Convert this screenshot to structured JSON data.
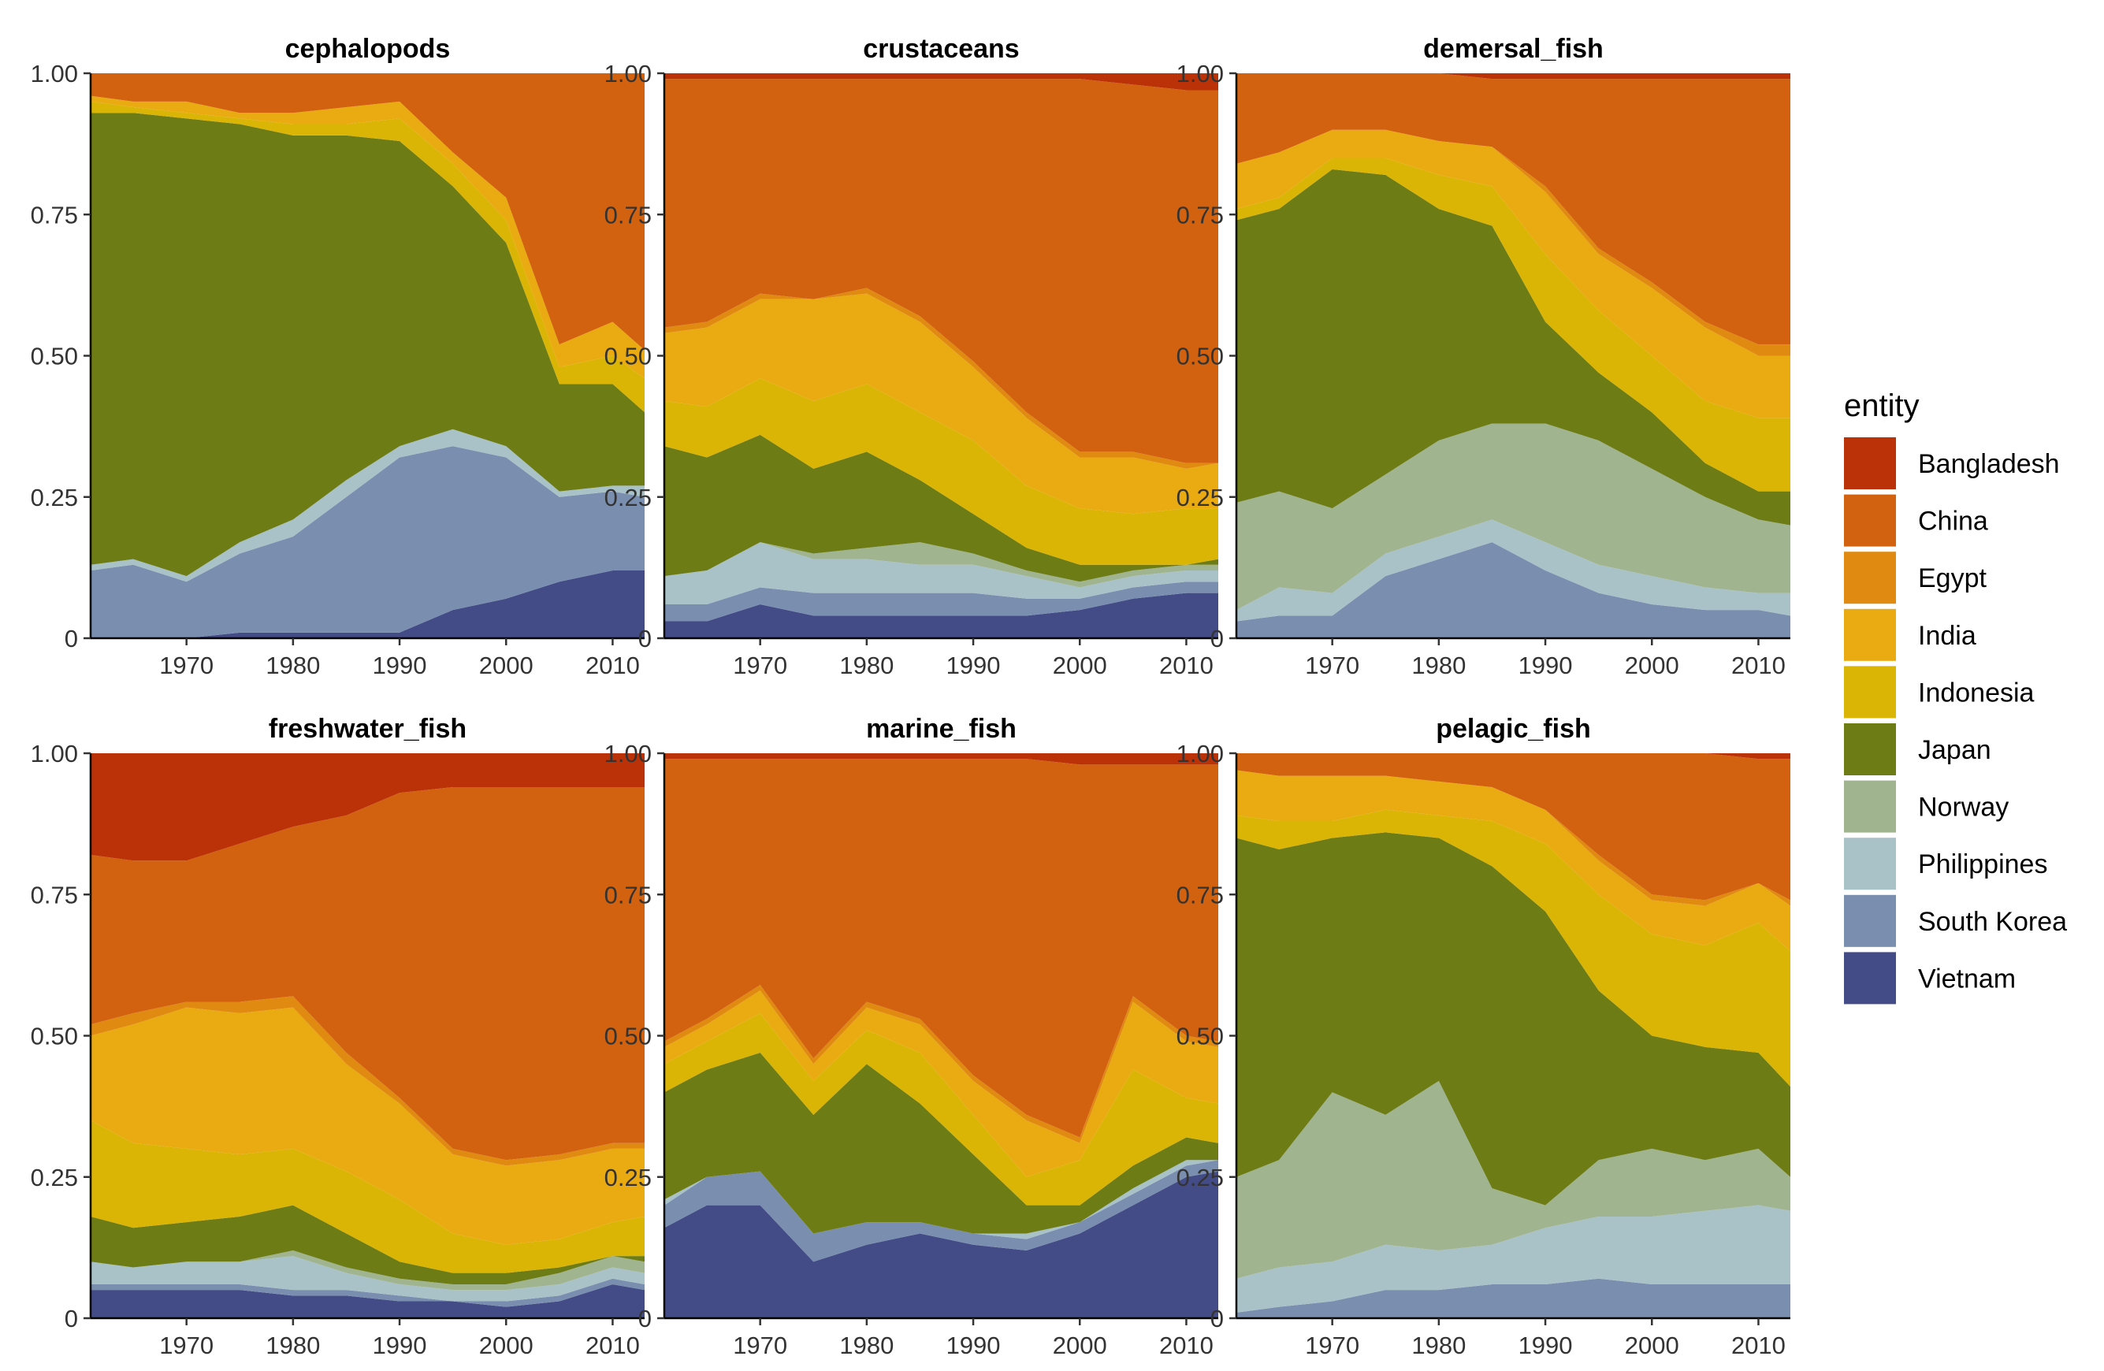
{
  "chart_data": {
    "type": "area",
    "stacking": "proportional",
    "x_ticks": [
      1970,
      1980,
      1990,
      2000,
      2010
    ],
    "y_ticks": [
      "0",
      "0.25",
      "0.50",
      "0.75",
      "1.00"
    ],
    "xlim": [
      1961,
      2013
    ],
    "ylim": [
      0,
      1
    ],
    "legend": {
      "title": "entity",
      "position": "right",
      "entries": [
        "Bangladesh",
        "China",
        "Egypt",
        "India",
        "Indonesia",
        "Japan",
        "Norway",
        "Philippines",
        "South Korea",
        "Vietnam"
      ]
    },
    "colors": {
      "Bangladesh": "#BB3208",
      "China": "#D2620F",
      "Egypt": "#E08A12",
      "India": "#EAAA12",
      "Indonesia": "#DAB505",
      "Japan": "#6D7C15",
      "Norway": "#A0B490",
      "Philippines": "#A9C2C8",
      "South Korea": "#7A8FB0",
      "Vietnam": "#444C87"
    },
    "panels": [
      {
        "title": "cephalopods",
        "years": [
          1961,
          1965,
          1970,
          1975,
          1980,
          1985,
          1990,
          1995,
          2000,
          2005,
          2010,
          2013
        ],
        "boundaries": {
          "Vietnam": [
            0.0,
            0.0,
            0.0,
            0.01,
            0.01,
            0.01,
            0.01,
            0.05,
            0.07,
            0.1,
            0.12,
            0.12
          ],
          "South Korea": [
            0.12,
            0.13,
            0.1,
            0.15,
            0.18,
            0.25,
            0.32,
            0.34,
            0.32,
            0.25,
            0.26,
            0.25
          ],
          "Philippines": [
            0.13,
            0.14,
            0.11,
            0.17,
            0.21,
            0.28,
            0.34,
            0.37,
            0.34,
            0.26,
            0.27,
            0.27
          ],
          "Norway": [
            0.13,
            0.14,
            0.11,
            0.17,
            0.21,
            0.28,
            0.34,
            0.37,
            0.34,
            0.26,
            0.27,
            0.27
          ],
          "Japan": [
            0.93,
            0.93,
            0.92,
            0.91,
            0.89,
            0.89,
            0.88,
            0.8,
            0.7,
            0.45,
            0.45,
            0.4
          ],
          "Indonesia": [
            0.95,
            0.94,
            0.93,
            0.92,
            0.91,
            0.91,
            0.92,
            0.84,
            0.74,
            0.48,
            0.5,
            0.46
          ],
          "India": [
            0.96,
            0.95,
            0.95,
            0.93,
            0.93,
            0.94,
            0.95,
            0.86,
            0.78,
            0.52,
            0.56,
            0.51
          ],
          "Egypt": [
            0.96,
            0.95,
            0.95,
            0.93,
            0.93,
            0.94,
            0.95,
            0.86,
            0.78,
            0.52,
            0.56,
            0.51
          ],
          "China": [
            1.0,
            1.0,
            1.0,
            1.0,
            1.0,
            1.0,
            1.0,
            1.0,
            1.0,
            1.0,
            1.0,
            1.0
          ]
        }
      },
      {
        "title": "crustaceans",
        "years": [
          1961,
          1965,
          1970,
          1975,
          1980,
          1985,
          1990,
          1995,
          2000,
          2005,
          2010,
          2013
        ],
        "boundaries": {
          "Vietnam": [
            0.03,
            0.03,
            0.06,
            0.04,
            0.04,
            0.04,
            0.04,
            0.04,
            0.05,
            0.07,
            0.08,
            0.08
          ],
          "South Korea": [
            0.06,
            0.06,
            0.09,
            0.08,
            0.08,
            0.08,
            0.08,
            0.07,
            0.07,
            0.09,
            0.1,
            0.1
          ],
          "Philippines": [
            0.11,
            0.12,
            0.17,
            0.14,
            0.14,
            0.13,
            0.13,
            0.11,
            0.09,
            0.11,
            0.12,
            0.12
          ],
          "Norway": [
            0.11,
            0.12,
            0.17,
            0.15,
            0.16,
            0.17,
            0.15,
            0.12,
            0.1,
            0.12,
            0.13,
            0.13
          ],
          "Japan": [
            0.34,
            0.32,
            0.36,
            0.3,
            0.33,
            0.28,
            0.22,
            0.16,
            0.13,
            0.13,
            0.13,
            0.14
          ],
          "Indonesia": [
            0.42,
            0.41,
            0.46,
            0.42,
            0.45,
            0.4,
            0.35,
            0.27,
            0.23,
            0.22,
            0.23,
            0.23
          ],
          "India": [
            0.54,
            0.55,
            0.6,
            0.6,
            0.61,
            0.56,
            0.48,
            0.39,
            0.32,
            0.32,
            0.3,
            0.31
          ],
          "Egypt": [
            0.55,
            0.56,
            0.61,
            0.6,
            0.62,
            0.57,
            0.49,
            0.4,
            0.33,
            0.33,
            0.31,
            0.31
          ],
          "China": [
            0.99,
            0.99,
            0.99,
            0.99,
            0.99,
            0.99,
            0.99,
            0.99,
            0.99,
            0.98,
            0.97,
            0.97
          ]
        }
      },
      {
        "title": "demersal_fish",
        "years": [
          1961,
          1965,
          1970,
          1975,
          1980,
          1985,
          1990,
          1995,
          2000,
          2005,
          2010,
          2013
        ],
        "boundaries": {
          "Vietnam": [
            0.0,
            0.0,
            0.0,
            0.0,
            0.0,
            0.0,
            0.0,
            0.0,
            0.0,
            0.0,
            0.0,
            0.0
          ],
          "South Korea": [
            0.03,
            0.04,
            0.04,
            0.11,
            0.14,
            0.17,
            0.12,
            0.08,
            0.06,
            0.05,
            0.05,
            0.04
          ],
          "Philippines": [
            0.05,
            0.09,
            0.08,
            0.15,
            0.18,
            0.21,
            0.17,
            0.13,
            0.11,
            0.09,
            0.08,
            0.08
          ],
          "Norway": [
            0.24,
            0.26,
            0.23,
            0.29,
            0.35,
            0.38,
            0.38,
            0.35,
            0.3,
            0.25,
            0.21,
            0.2
          ],
          "Japan": [
            0.74,
            0.76,
            0.83,
            0.82,
            0.76,
            0.73,
            0.56,
            0.47,
            0.4,
            0.31,
            0.26,
            0.26
          ],
          "Indonesia": [
            0.76,
            0.78,
            0.85,
            0.85,
            0.82,
            0.8,
            0.68,
            0.58,
            0.5,
            0.42,
            0.39,
            0.39
          ],
          "India": [
            0.84,
            0.86,
            0.9,
            0.9,
            0.88,
            0.87,
            0.79,
            0.68,
            0.62,
            0.55,
            0.5,
            0.5
          ],
          "Egypt": [
            0.84,
            0.86,
            0.9,
            0.9,
            0.88,
            0.87,
            0.8,
            0.69,
            0.63,
            0.56,
            0.52,
            0.52
          ],
          "China": [
            1.0,
            1.0,
            1.0,
            1.0,
            1.0,
            0.99,
            0.99,
            0.99,
            0.99,
            0.99,
            0.99,
            0.99
          ]
        }
      },
      {
        "title": "freshwater_fish",
        "years": [
          1961,
          1965,
          1970,
          1975,
          1980,
          1985,
          1990,
          1995,
          2000,
          2005,
          2010,
          2013
        ],
        "boundaries": {
          "Vietnam": [
            0.05,
            0.05,
            0.05,
            0.05,
            0.04,
            0.04,
            0.03,
            0.03,
            0.02,
            0.03,
            0.06,
            0.05
          ],
          "South Korea": [
            0.06,
            0.06,
            0.06,
            0.06,
            0.05,
            0.05,
            0.04,
            0.03,
            0.03,
            0.04,
            0.07,
            0.06
          ],
          "Philippines": [
            0.1,
            0.09,
            0.1,
            0.1,
            0.11,
            0.08,
            0.06,
            0.05,
            0.05,
            0.06,
            0.09,
            0.08
          ],
          "Norway": [
            0.1,
            0.09,
            0.1,
            0.1,
            0.12,
            0.09,
            0.07,
            0.06,
            0.06,
            0.08,
            0.11,
            0.1
          ],
          "Japan": [
            0.18,
            0.16,
            0.17,
            0.18,
            0.2,
            0.15,
            0.1,
            0.08,
            0.08,
            0.09,
            0.11,
            0.11
          ],
          "Indonesia": [
            0.35,
            0.31,
            0.3,
            0.29,
            0.3,
            0.26,
            0.21,
            0.15,
            0.13,
            0.14,
            0.17,
            0.18
          ],
          "India": [
            0.5,
            0.52,
            0.55,
            0.54,
            0.55,
            0.45,
            0.38,
            0.29,
            0.27,
            0.28,
            0.3,
            0.3
          ],
          "Egypt": [
            0.52,
            0.54,
            0.56,
            0.56,
            0.57,
            0.47,
            0.39,
            0.3,
            0.28,
            0.29,
            0.31,
            0.31
          ],
          "China": [
            0.82,
            0.81,
            0.81,
            0.84,
            0.87,
            0.89,
            0.93,
            0.94,
            0.94,
            0.94,
            0.94,
            0.94
          ]
        }
      },
      {
        "title": "marine_fish",
        "years": [
          1961,
          1965,
          1970,
          1975,
          1980,
          1985,
          1990,
          1995,
          2000,
          2005,
          2010,
          2013
        ],
        "boundaries": {
          "Vietnam": [
            0.16,
            0.2,
            0.2,
            0.1,
            0.13,
            0.15,
            0.13,
            0.12,
            0.15,
            0.2,
            0.25,
            0.26
          ],
          "South Korea": [
            0.2,
            0.25,
            0.26,
            0.15,
            0.17,
            0.17,
            0.15,
            0.14,
            0.17,
            0.22,
            0.27,
            0.28
          ],
          "Philippines": [
            0.21,
            0.25,
            0.26,
            0.15,
            0.17,
            0.17,
            0.15,
            0.15,
            0.17,
            0.23,
            0.28,
            0.28
          ],
          "Norway": [
            0.21,
            0.25,
            0.26,
            0.15,
            0.17,
            0.17,
            0.15,
            0.15,
            0.17,
            0.23,
            0.28,
            0.28
          ],
          "Japan": [
            0.4,
            0.44,
            0.47,
            0.36,
            0.45,
            0.38,
            0.29,
            0.2,
            0.2,
            0.27,
            0.32,
            0.31
          ],
          "Indonesia": [
            0.45,
            0.49,
            0.54,
            0.42,
            0.51,
            0.47,
            0.36,
            0.25,
            0.28,
            0.44,
            0.39,
            0.38
          ],
          "India": [
            0.48,
            0.52,
            0.58,
            0.45,
            0.55,
            0.52,
            0.42,
            0.35,
            0.31,
            0.56,
            0.49,
            0.48
          ],
          "Egypt": [
            0.49,
            0.53,
            0.59,
            0.46,
            0.56,
            0.53,
            0.43,
            0.36,
            0.32,
            0.57,
            0.5,
            0.49
          ],
          "China": [
            0.99,
            0.99,
            0.99,
            0.99,
            0.99,
            0.99,
            0.99,
            0.99,
            0.98,
            0.98,
            0.98,
            0.98
          ]
        }
      },
      {
        "title": "pelagic_fish",
        "years": [
          1961,
          1965,
          1970,
          1975,
          1980,
          1985,
          1990,
          1995,
          2000,
          2005,
          2010,
          2013
        ],
        "boundaries": {
          "Vietnam": [
            0.0,
            0.0,
            0.0,
            0.0,
            0.0,
            0.0,
            0.0,
            0.0,
            0.0,
            0.0,
            0.0,
            0.0
          ],
          "South Korea": [
            0.01,
            0.02,
            0.03,
            0.05,
            0.05,
            0.06,
            0.06,
            0.07,
            0.06,
            0.06,
            0.06,
            0.06
          ],
          "Philippines": [
            0.07,
            0.09,
            0.1,
            0.13,
            0.12,
            0.13,
            0.16,
            0.18,
            0.18,
            0.19,
            0.2,
            0.19
          ],
          "Norway": [
            0.25,
            0.28,
            0.4,
            0.36,
            0.42,
            0.23,
            0.2,
            0.28,
            0.3,
            0.28,
            0.3,
            0.25
          ],
          "Japan": [
            0.85,
            0.83,
            0.85,
            0.86,
            0.85,
            0.8,
            0.72,
            0.58,
            0.5,
            0.48,
            0.47,
            0.41
          ],
          "Indonesia": [
            0.89,
            0.88,
            0.88,
            0.9,
            0.89,
            0.88,
            0.84,
            0.75,
            0.68,
            0.66,
            0.7,
            0.65
          ],
          "India": [
            0.97,
            0.96,
            0.96,
            0.96,
            0.95,
            0.94,
            0.9,
            0.81,
            0.74,
            0.73,
            0.77,
            0.73
          ],
          "Egypt": [
            0.97,
            0.96,
            0.96,
            0.96,
            0.95,
            0.94,
            0.9,
            0.82,
            0.75,
            0.74,
            0.77,
            0.74
          ],
          "China": [
            1.0,
            1.0,
            1.0,
            1.0,
            1.0,
            1.0,
            1.0,
            1.0,
            1.0,
            1.0,
            0.99,
            0.99
          ]
        }
      }
    ]
  }
}
